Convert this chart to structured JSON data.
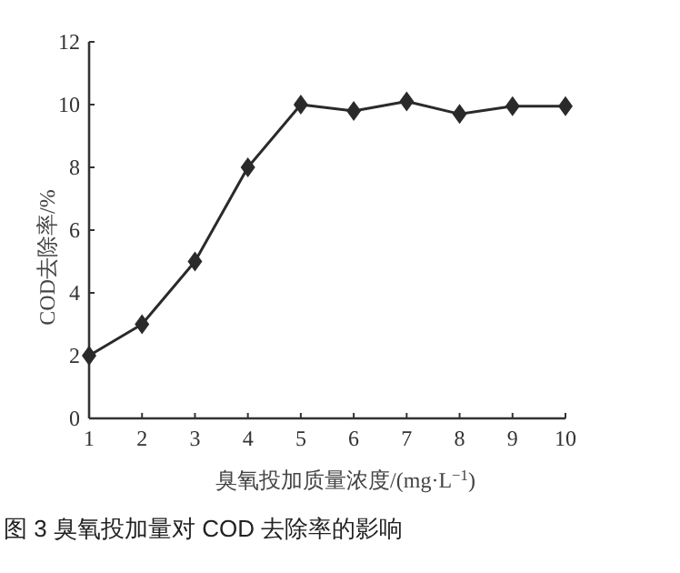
{
  "chart_data": {
    "type": "line",
    "title": "图 3 臭氧投加量对 COD 去除率的影响",
    "xlabel": "臭氧投加质量浓度/(mg·L$^{−1}$)",
    "ylabel": "COD去除率/%",
    "x": [
      1,
      2,
      3,
      4,
      5,
      6,
      7,
      8,
      9,
      10
    ],
    "series": [
      {
        "color": "#2a2a2a",
        "values": [
          2,
          3,
          5,
          8,
          10,
          9.8,
          10.1,
          9.7,
          9.95,
          9.95
        ]
      }
    ],
    "xlim": [
      1,
      10
    ],
    "xticks": [
      1,
      2,
      3,
      4,
      5,
      6,
      7,
      8,
      9,
      10
    ],
    "ylim": [
      0,
      12
    ],
    "yticks": [
      0,
      2,
      4,
      6,
      8,
      10,
      12
    ],
    "marker": "diamond",
    "line_style": "solid"
  }
}
